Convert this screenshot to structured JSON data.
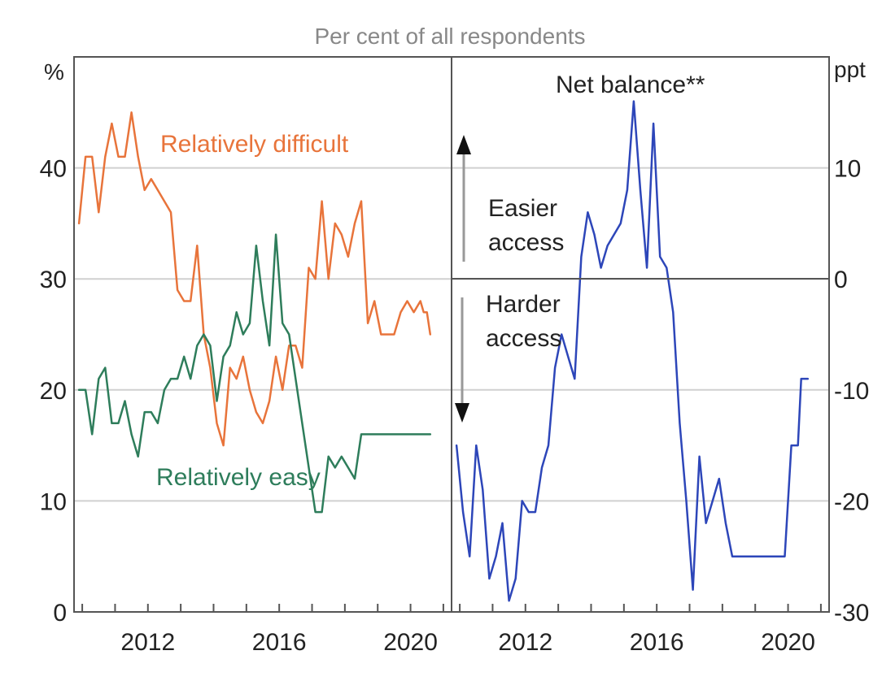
{
  "chart_data": [
    {
      "type": "line",
      "subtitle": "Per cent of all respondents",
      "unit": "%",
      "ylim": [
        0,
        50
      ],
      "yticks": [
        0,
        10,
        20,
        30,
        40
      ],
      "xlim": [
        2009.75,
        2021.25
      ],
      "xticks": [
        2012,
        2016,
        2020
      ],
      "grid": true,
      "series": [
        {
          "name": "Relatively difficult",
          "color": "#e8743b",
          "x": [
            2009.9,
            2010.1,
            2010.3,
            2010.5,
            2010.7,
            2010.9,
            2011.1,
            2011.3,
            2011.5,
            2011.7,
            2011.9,
            2012.1,
            2012.3,
            2012.5,
            2012.7,
            2012.9,
            2013.1,
            2013.3,
            2013.5,
            2013.7,
            2013.9,
            2014.1,
            2014.3,
            2014.5,
            2014.7,
            2014.9,
            2015.1,
            2015.3,
            2015.5,
            2015.7,
            2015.9,
            2016.1,
            2016.3,
            2016.5,
            2016.7,
            2016.9,
            2017.1,
            2017.3,
            2017.5,
            2017.7,
            2017.9,
            2018.1,
            2018.3,
            2018.5,
            2018.7,
            2018.9,
            2019.1,
            2019.3,
            2019.5,
            2019.7,
            2019.9,
            2020.1,
            2020.3,
            2020.4,
            2020.5,
            2020.6
          ],
          "values": [
            35,
            41,
            41,
            36,
            41,
            44,
            41,
            41,
            45,
            41,
            38,
            39,
            38,
            37,
            36,
            29,
            28,
            28,
            33,
            25,
            22,
            17,
            15,
            22,
            21,
            23,
            20,
            18,
            17,
            19,
            23,
            20,
            24,
            24,
            22,
            31,
            30,
            37,
            30,
            35,
            34,
            32,
            35,
            37,
            26,
            28,
            25,
            25,
            25,
            27,
            28,
            27,
            28,
            27,
            27,
            25
          ]
        },
        {
          "name": "Relatively easy",
          "color": "#2e7d5b",
          "x": [
            2009.9,
            2010.1,
            2010.3,
            2010.5,
            2010.7,
            2010.9,
            2011.1,
            2011.3,
            2011.5,
            2011.7,
            2011.9,
            2012.1,
            2012.3,
            2012.5,
            2012.7,
            2012.9,
            2013.1,
            2013.3,
            2013.5,
            2013.7,
            2013.9,
            2014.1,
            2014.3,
            2014.5,
            2014.7,
            2014.9,
            2015.1,
            2015.3,
            2015.5,
            2015.7,
            2015.9,
            2016.1,
            2016.3,
            2016.5,
            2016.7,
            2016.9,
            2017.1,
            2017.3,
            2017.5,
            2017.7,
            2017.9,
            2018.1,
            2018.3,
            2018.5,
            2018.7,
            2018.9,
            2019.1,
            2019.3,
            2019.5,
            2019.7,
            2019.9,
            2020.1,
            2020.3,
            2020.5,
            2020.6
          ],
          "values": [
            20,
            20,
            16,
            21,
            22,
            17,
            17,
            19,
            16,
            14,
            18,
            18,
            17,
            20,
            21,
            21,
            23,
            21,
            24,
            25,
            24,
            19,
            23,
            24,
            27,
            25,
            26,
            33,
            28,
            24,
            34,
            26,
            25,
            21,
            17,
            13,
            9,
            9,
            14,
            13,
            14,
            13,
            12,
            16,
            16,
            16,
            16,
            16,
            16,
            16,
            16,
            16,
            16,
            16,
            16
          ]
        }
      ],
      "annotations": [
        "Relatively difficult",
        "Relatively easy"
      ]
    },
    {
      "type": "line",
      "unit": "ppt",
      "ylim": [
        -30,
        20
      ],
      "yticks": [
        -30,
        -20,
        -10,
        0,
        10
      ],
      "xlim": [
        2009.75,
        2021.25
      ],
      "xticks": [
        2012,
        2016,
        2020
      ],
      "grid": true,
      "series": [
        {
          "name": "Net balance**",
          "color": "#2d46b9",
          "x": [
            2009.9,
            2010.1,
            2010.3,
            2010.5,
            2010.7,
            2010.9,
            2011.1,
            2011.3,
            2011.5,
            2011.7,
            2011.9,
            2012.1,
            2012.3,
            2012.5,
            2012.7,
            2012.9,
            2013.1,
            2013.3,
            2013.5,
            2013.7,
            2013.9,
            2014.1,
            2014.3,
            2014.5,
            2014.7,
            2014.9,
            2015.1,
            2015.3,
            2015.5,
            2015.7,
            2015.9,
            2016.1,
            2016.3,
            2016.5,
            2016.7,
            2016.9,
            2017.1,
            2017.3,
            2017.5,
            2017.7,
            2017.9,
            2018.1,
            2018.3,
            2018.5,
            2018.7,
            2018.9,
            2019.1,
            2019.3,
            2019.5,
            2019.7,
            2019.9,
            2020.1,
            2020.3,
            2020.4,
            2020.5,
            2020.6
          ],
          "values": [
            -15,
            -21,
            -25,
            -15,
            -19,
            -27,
            -25,
            -22,
            -29,
            -27,
            -20,
            -21,
            -21,
            -17,
            -15,
            -8,
            -5,
            -7,
            -9,
            2,
            6,
            4,
            1,
            3,
            4,
            5,
            8,
            16,
            8,
            1,
            14,
            2,
            1,
            -3,
            -13,
            -20,
            -28,
            -16,
            -22,
            -20,
            -18,
            -22,
            -25,
            -25,
            -25,
            -25,
            -25,
            -25,
            -25,
            -25,
            -25,
            -15,
            -15,
            -9,
            -9,
            -9
          ]
        }
      ],
      "annotations": [
        "Net balance**",
        "Easier access",
        "Harder access"
      ]
    }
  ]
}
